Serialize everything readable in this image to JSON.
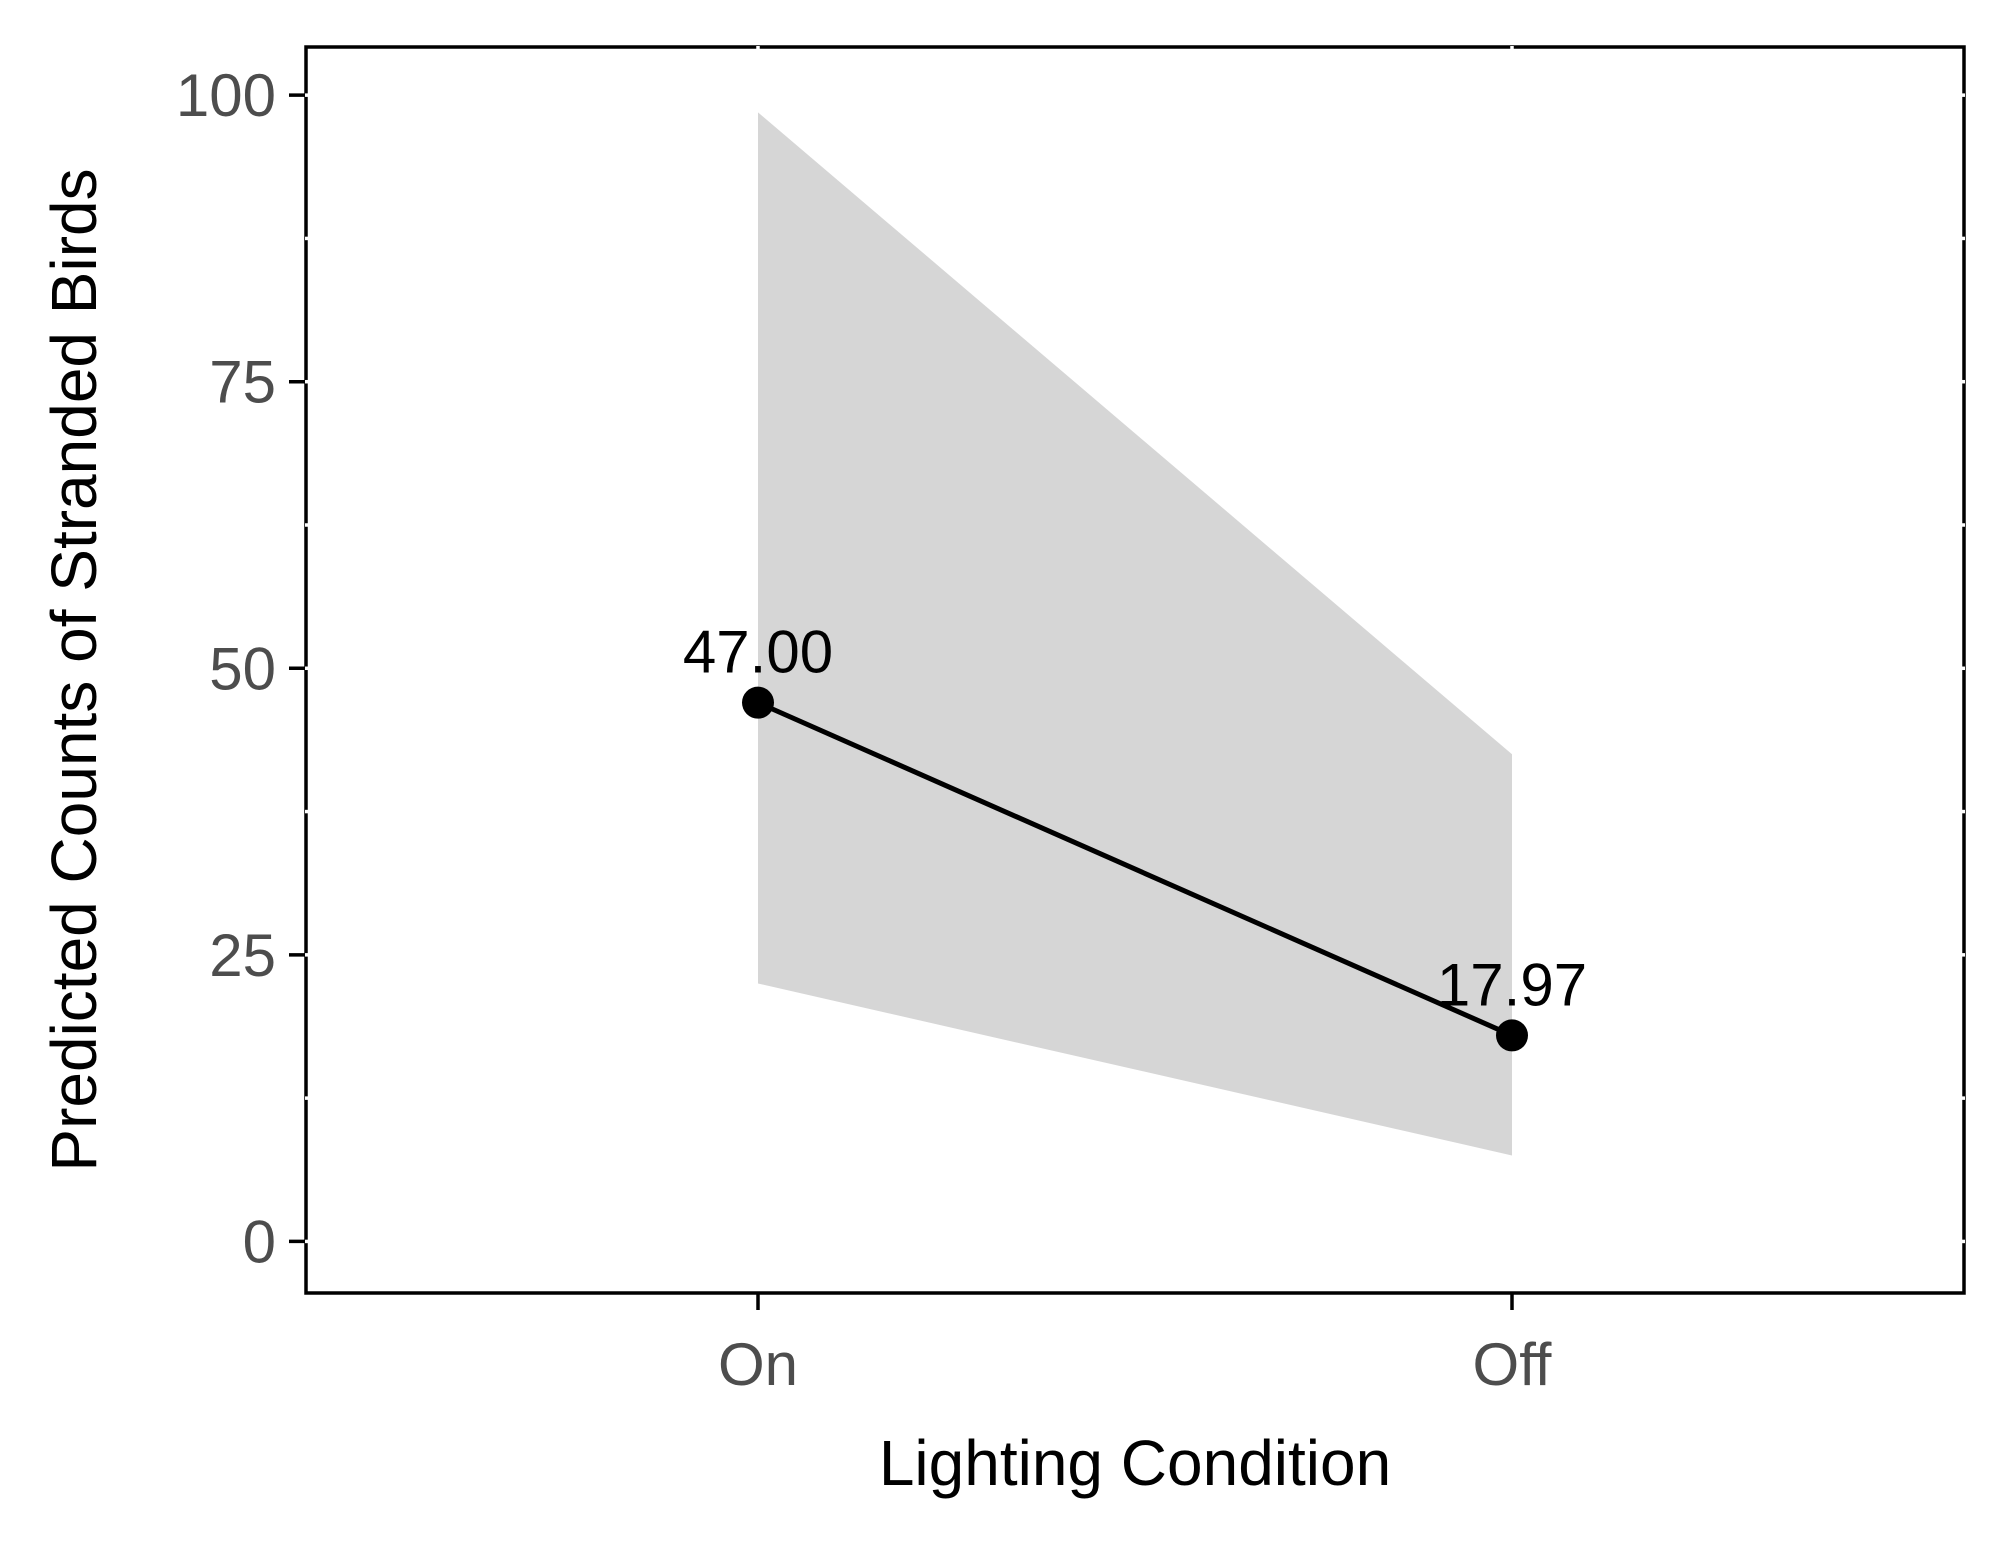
{
  "chart_data": {
    "type": "line",
    "categories": [
      "On",
      "Off"
    ],
    "series": [
      {
        "values": [
          47.0,
          17.97
        ],
        "lower": [
          22.5,
          7.5
        ],
        "upper": [
          98.5,
          42.5
        ],
        "labels": [
          "47.00",
          "17.97"
        ]
      }
    ],
    "xlabel": "Lighting Condition",
    "ylabel": "Predicted Counts of Stranded Birds",
    "ylim": [
      -4.5,
      104.2
    ],
    "yticks": [
      0,
      25,
      50,
      75,
      100
    ],
    "yminor": [
      12.5,
      37.5,
      62.5,
      87.5
    ],
    "grid": false,
    "legend": "none",
    "colors": {
      "line": "#000000",
      "ribbon": "#d6d6d6",
      "axis": "#000000",
      "tick_text": "#4d4d4d",
      "background": "#ffffff"
    }
  }
}
